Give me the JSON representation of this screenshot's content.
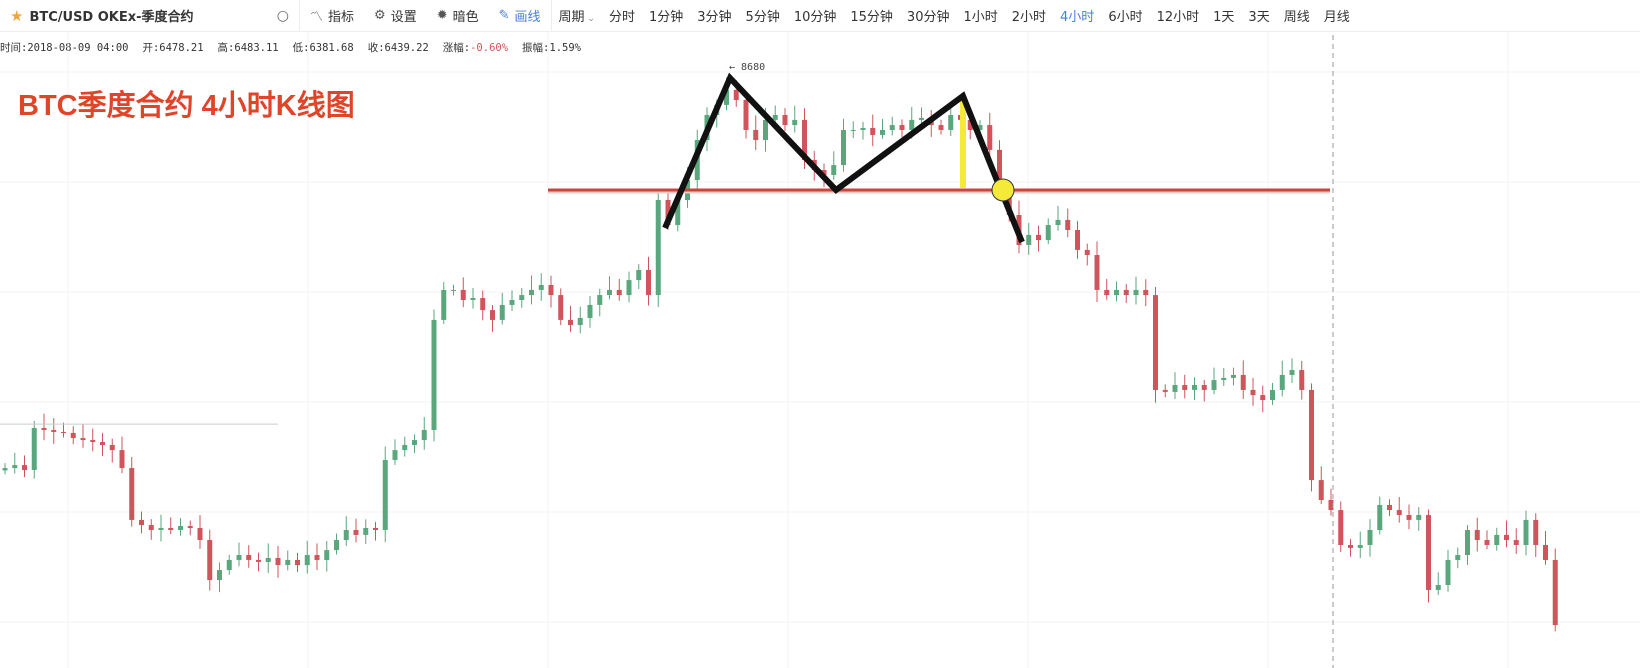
{
  "toolbar": {
    "symbol": "BTC/USD OKEx-季度合约",
    "icons": {
      "favorite": "star-icon",
      "search": "search-icon",
      "indicator": "chart-line-icon",
      "settings": "gear-icon",
      "dark": "sun-icon",
      "draw": "pencil-icon"
    },
    "indicator_label": "指标",
    "settings_label": "设置",
    "dark_label": "暗色",
    "draw_label": "画线",
    "period_label": "周期",
    "periods": [
      "分时",
      "1分钟",
      "3分钟",
      "5分钟",
      "10分钟",
      "15分钟",
      "30分钟",
      "1小时",
      "2小时",
      "4小时",
      "6小时",
      "12小时",
      "1天",
      "3天",
      "周线",
      "月线"
    ],
    "active_period": "4小时"
  },
  "info": {
    "time": "时间:2018-08-09 04:00",
    "open": "开:6478.21",
    "high": "高:6483.11",
    "low": "低:6381.68",
    "close": "收:6439.22",
    "change_label": "涨幅:",
    "change": "-0.60%",
    "amplitude": "振幅:1.59%"
  },
  "annotation": {
    "title": "BTC季度合约 4小时K线图",
    "peak_label": "← 8680",
    "neckline_price": 8062,
    "old_level_price": 6875
  },
  "colors": {
    "up": "#5aa77d",
    "down": "#d0545b",
    "neckline": "#c9463d",
    "pattern": "#111111",
    "marker": "#f5ea3a",
    "title": "#e0452a",
    "active": "#4a7fd9"
  },
  "chart_data": {
    "type": "candlestick",
    "first_open": 6640,
    "closes": [
      6652,
      6667,
      6642,
      6855,
      6845,
      6835,
      6830,
      6804,
      6794,
      6784,
      6769,
      6743,
      6652,
      6389,
      6363,
      6338,
      6348,
      6338,
      6358,
      6348,
      6287,
      6084,
      6135,
      6186,
      6211,
      6186,
      6176,
      6196,
      6160,
      6186,
      6160,
      6211,
      6186,
      6236,
      6287,
      6338,
      6313,
      6348,
      6338,
      6693,
      6743,
      6769,
      6794,
      6845,
      7403,
      7555,
      7555,
      7504,
      7514,
      7453,
      7403,
      7479,
      7504,
      7529,
      7555,
      7580,
      7529,
      7403,
      7377,
      7413,
      7479,
      7529,
      7555,
      7529,
      7605,
      7656,
      7529,
      8011,
      7884,
      8011,
      8112,
      8315,
      8442,
      8493,
      8569,
      8518,
      8366,
      8315,
      8417,
      8442,
      8391,
      8417,
      8214,
      8163,
      8138,
      8188,
      8366,
      8366,
      8376,
      8341,
      8366,
      8391,
      8366,
      8417,
      8427,
      8391,
      8366,
      8442,
      8417,
      8366,
      8391,
      8265,
      8036,
      7935,
      7783,
      7834,
      7808,
      7884,
      7910,
      7859,
      7758,
      7732,
      7555,
      7529,
      7555,
      7529,
      7555,
      7529,
      7048,
      7038,
      7073,
      7048,
      7073,
      7048,
      7098,
      7109,
      7124,
      7048,
      7022,
      6997,
      7048,
      7124,
      7149,
      7048,
      6591,
      6490,
      6439,
      6262,
      6247,
      6262,
      6338,
      6465,
      6439,
      6414,
      6389,
      6414,
      6034,
      6059,
      6186,
      6211,
      6338,
      6287,
      6262,
      6313,
      6287,
      6262,
      6389,
      6262,
      6186,
      5856
    ]
  }
}
